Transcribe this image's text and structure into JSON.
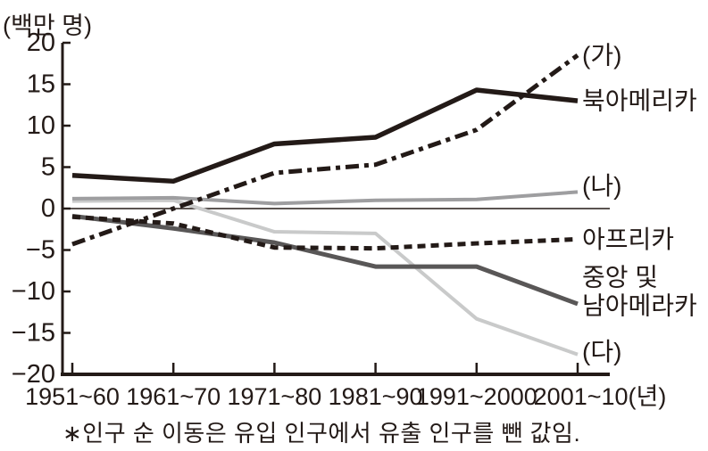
{
  "chart_data": {
    "type": "line",
    "title": "",
    "unit_label": "(백만 명)",
    "xlabel": "",
    "ylabel": "(백만 명)",
    "x_unit_suffix": "(년)",
    "categories": [
      "1951~60",
      "1961~70",
      "1971~80",
      "1981~90",
      "1991~2000",
      "2001~10"
    ],
    "ylim": [
      -20,
      20
    ],
    "yticks": [
      20,
      15,
      10,
      5,
      0,
      -5,
      -10,
      -15,
      -20
    ],
    "grid": false,
    "legend_position": "right-of-line-ends",
    "series": [
      {
        "name": "(가)",
        "label_lines": [
          "(가)"
        ],
        "label_dy": 0,
        "style": "dashdot",
        "color": "#231a17",
        "width": 5,
        "values": [
          -4.3,
          0,
          4.3,
          5.3,
          9.5,
          18.5
        ]
      },
      {
        "name": "북아메리카",
        "label_lines": [
          "북아메리카"
        ],
        "label_dy": 0,
        "style": "solid",
        "color": "#231a17",
        "width": 5.5,
        "values": [
          4,
          3.3,
          7.8,
          8.6,
          14.3,
          13
        ]
      },
      {
        "name": "(나)",
        "label_lines": [
          "(나)"
        ],
        "label_dy": -7,
        "style": "solid",
        "color": "#9e9ea0",
        "width": 4,
        "values": [
          1.2,
          1.3,
          0.6,
          1,
          1.1,
          2
        ]
      },
      {
        "name": "아프리카",
        "label_lines": [
          "아프리카"
        ],
        "label_dy": 0,
        "style": "dashed",
        "color": "#231a17",
        "width": 5,
        "values": [
          -1,
          -1.8,
          -4.7,
          -4.8,
          -4.2,
          -3.7
        ]
      },
      {
        "name": "중앙 및 남아메라카",
        "label_lines": [
          "중앙 및",
          "남아메라카"
        ],
        "label_dy": -14,
        "style": "solid",
        "color": "#595757",
        "width": 5,
        "values": [
          -0.9,
          -2.4,
          -4.1,
          -7,
          -7,
          -11.5
        ]
      },
      {
        "name": "(다)",
        "label_lines": [
          "(다)"
        ],
        "label_dy": -3,
        "style": "solid",
        "color": "#c9caca",
        "width": 4,
        "values": [
          0.9,
          1,
          -2.8,
          -3,
          -13.3,
          -17.6
        ]
      }
    ],
    "footnote": "∗인구 순 이동은 유입 인구에서 유출 인구를 뺀 값임."
  },
  "colors": {
    "text": "#231a17",
    "axis": "#231a17",
    "background": "#ffffff"
  }
}
